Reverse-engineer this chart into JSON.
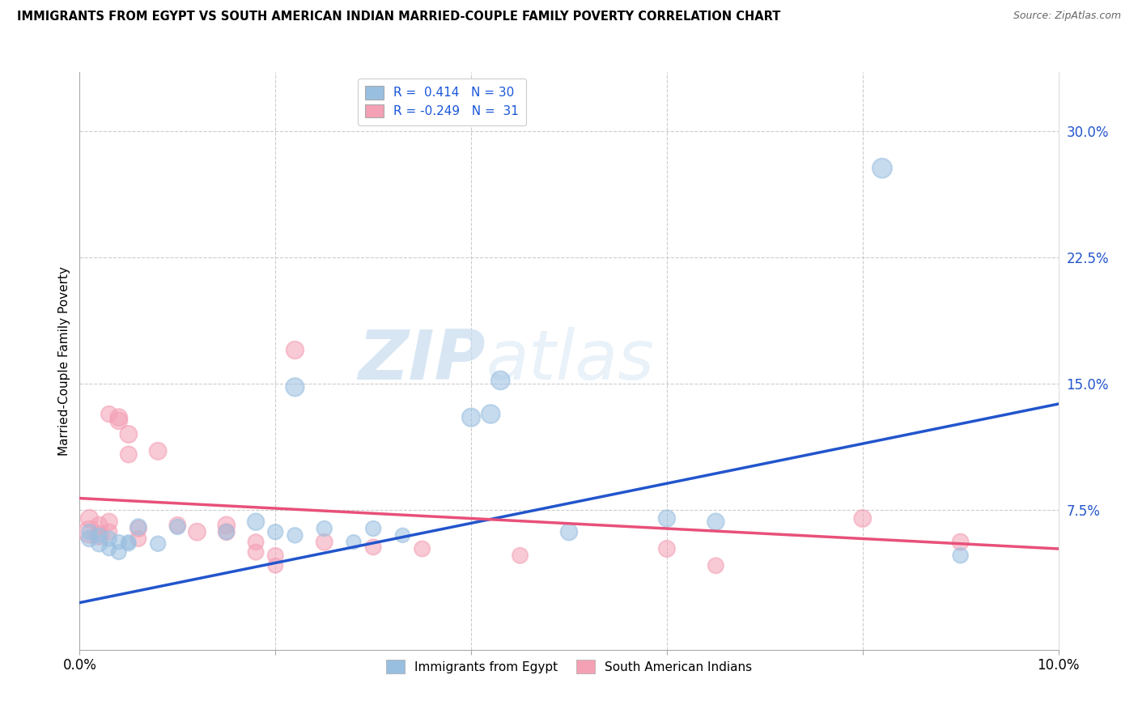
{
  "title": "IMMIGRANTS FROM EGYPT VS SOUTH AMERICAN INDIAN MARRIED-COUPLE FAMILY POVERTY CORRELATION CHART",
  "source": "Source: ZipAtlas.com",
  "ylabel": "Married-Couple Family Poverty",
  "right_ytick_labels": [
    "7.5%",
    "15.0%",
    "22.5%",
    "30.0%"
  ],
  "right_ytick_vals": [
    0.075,
    0.15,
    0.225,
    0.3
  ],
  "xmin": 0.0,
  "xmax": 0.1,
  "ymin": -0.008,
  "ymax": 0.335,
  "legend_entries": [
    {
      "label": "R =  0.414   N = 30",
      "color": "#aac8e8"
    },
    {
      "label": "R = -0.249   N =  31",
      "color": "#f4a0b5"
    }
  ],
  "legend_label_color": "#1a56db",
  "watermark_zip": "ZIP",
  "watermark_atlas": "atlas",
  "blue_color": "#99bfe0",
  "pink_color": "#f4a0b5",
  "blue_line_color": "#2255cc",
  "pink_line_color": "#e8507a",
  "blue_line_y0": 0.02,
  "blue_line_y1": 0.138,
  "pink_line_y0": 0.082,
  "pink_line_y1": 0.052,
  "blue_scatter": [
    [
      0.001,
      0.058
    ],
    [
      0.001,
      0.062
    ],
    [
      0.002,
      0.055
    ],
    [
      0.002,
      0.06
    ],
    [
      0.003,
      0.052
    ],
    [
      0.003,
      0.058
    ],
    [
      0.004,
      0.056
    ],
    [
      0.004,
      0.05
    ],
    [
      0.005,
      0.055
    ],
    [
      0.005,
      0.056
    ],
    [
      0.006,
      0.065
    ],
    [
      0.008,
      0.055
    ],
    [
      0.01,
      0.065
    ],
    [
      0.015,
      0.062
    ],
    [
      0.018,
      0.068
    ],
    [
      0.02,
      0.062
    ],
    [
      0.022,
      0.06
    ],
    [
      0.022,
      0.148
    ],
    [
      0.025,
      0.064
    ],
    [
      0.028,
      0.056
    ],
    [
      0.03,
      0.064
    ],
    [
      0.033,
      0.06
    ],
    [
      0.04,
      0.13
    ],
    [
      0.042,
      0.132
    ],
    [
      0.043,
      0.152
    ],
    [
      0.05,
      0.062
    ],
    [
      0.06,
      0.07
    ],
    [
      0.065,
      0.068
    ],
    [
      0.082,
      0.278
    ],
    [
      0.09,
      0.048
    ]
  ],
  "pink_scatter": [
    [
      0.001,
      0.062
    ],
    [
      0.001,
      0.07
    ],
    [
      0.002,
      0.06
    ],
    [
      0.002,
      0.066
    ],
    [
      0.003,
      0.062
    ],
    [
      0.003,
      0.068
    ],
    [
      0.003,
      0.132
    ],
    [
      0.004,
      0.128
    ],
    [
      0.004,
      0.13
    ],
    [
      0.005,
      0.12
    ],
    [
      0.005,
      0.108
    ],
    [
      0.006,
      0.064
    ],
    [
      0.006,
      0.058
    ],
    [
      0.008,
      0.11
    ],
    [
      0.01,
      0.066
    ],
    [
      0.012,
      0.062
    ],
    [
      0.015,
      0.066
    ],
    [
      0.015,
      0.062
    ],
    [
      0.018,
      0.056
    ],
    [
      0.018,
      0.05
    ],
    [
      0.02,
      0.048
    ],
    [
      0.02,
      0.042
    ],
    [
      0.022,
      0.17
    ],
    [
      0.025,
      0.056
    ],
    [
      0.03,
      0.053
    ],
    [
      0.035,
      0.052
    ],
    [
      0.045,
      0.048
    ],
    [
      0.06,
      0.052
    ],
    [
      0.065,
      0.042
    ],
    [
      0.08,
      0.07
    ],
    [
      0.09,
      0.056
    ]
  ],
  "blue_sizes": [
    200,
    180,
    200,
    160,
    150,
    180,
    160,
    170,
    160,
    160,
    200,
    180,
    180,
    180,
    220,
    180,
    180,
    260,
    180,
    160,
    180,
    160,
    260,
    270,
    270,
    220,
    220,
    220,
    300,
    180
  ],
  "pink_sizes": [
    380,
    240,
    280,
    220,
    200,
    220,
    200,
    230,
    230,
    230,
    210,
    210,
    190,
    230,
    210,
    230,
    230,
    210,
    190,
    190,
    190,
    170,
    240,
    210,
    190,
    190,
    190,
    210,
    190,
    230,
    210
  ]
}
